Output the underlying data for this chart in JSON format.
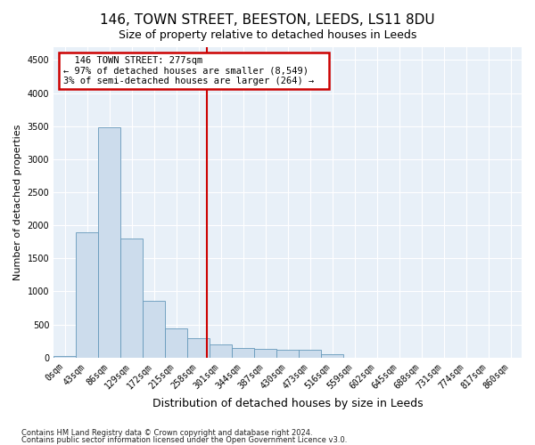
{
  "title": "146, TOWN STREET, BEESTON, LEEDS, LS11 8DU",
  "subtitle": "Size of property relative to detached houses in Leeds",
  "xlabel": "Distribution of detached houses by size in Leeds",
  "ylabel": "Number of detached properties",
  "footnote1": "Contains HM Land Registry data © Crown copyright and database right 2024.",
  "footnote2": "Contains public sector information licensed under the Open Government Licence v3.0.",
  "annotation_line1": "146 TOWN STREET: 277sqm",
  "annotation_line2": "← 97% of detached houses are smaller (8,549)",
  "annotation_line3": "3% of semi-detached houses are larger (264) →",
  "bar_color": "#ccdcec",
  "bar_edge_color": "#6699bb",
  "vline_color": "#cc0000",
  "vline_x_index": 6.37,
  "annotation_box_edge": "#cc0000",
  "ylim": [
    0,
    4700
  ],
  "yticks": [
    0,
    500,
    1000,
    1500,
    2000,
    2500,
    3000,
    3500,
    4000,
    4500
  ],
  "categories": [
    "0sqm",
    "43sqm",
    "86sqm",
    "129sqm",
    "172sqm",
    "215sqm",
    "258sqm",
    "301sqm",
    "344sqm",
    "387sqm",
    "430sqm",
    "473sqm",
    "516sqm",
    "559sqm",
    "602sqm",
    "645sqm",
    "688sqm",
    "731sqm",
    "774sqm",
    "817sqm",
    "860sqm"
  ],
  "values": [
    28,
    1900,
    3480,
    1800,
    860,
    440,
    300,
    200,
    150,
    130,
    120,
    120,
    55,
    0,
    0,
    0,
    0,
    0,
    0,
    0,
    0
  ],
  "figsize": [
    6.0,
    5.0
  ],
  "dpi": 100,
  "bg_color": "#e8f0f8",
  "grid_color": "white",
  "title_fontsize": 11,
  "subtitle_fontsize": 9,
  "axis_label_fontsize": 8,
  "tick_fontsize": 7,
  "footnote_fontsize": 6
}
